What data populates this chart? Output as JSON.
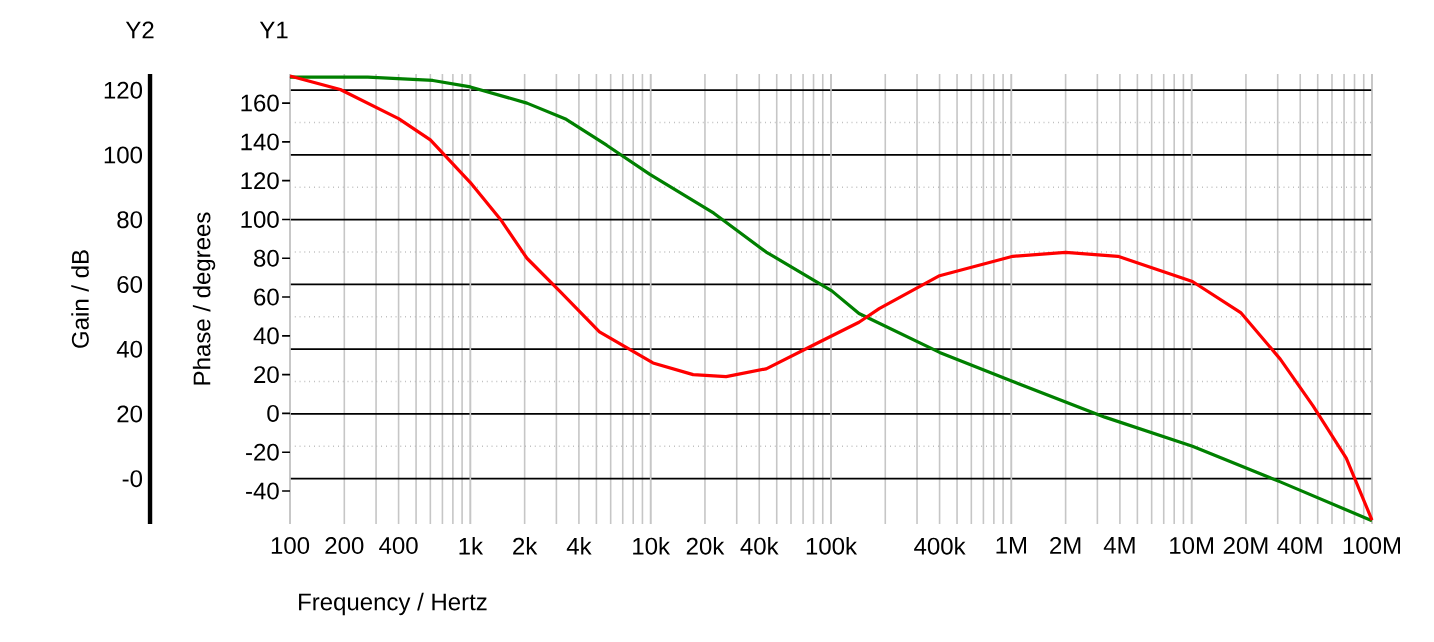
{
  "chart_data": {
    "type": "line",
    "xlabel": "Frequency / Hertz",
    "ylabel": "Phase / degrees",
    "y2label": "Gain / dB",
    "annotations": [
      "Y2",
      "Y1"
    ],
    "log": "x",
    "grid": true,
    "xlim": [
      100,
      100000000
    ],
    "xticks": [
      100,
      200,
      400,
      {
        "value": 1000,
        "label": "1k"
      },
      {
        "value": 2000,
        "label": "2k"
      },
      {
        "value": 4000,
        "label": "4k"
      },
      {
        "value": 10000,
        "label": "10k"
      },
      {
        "value": 20000,
        "label": "20k"
      },
      {
        "value": 40000,
        "label": "40k"
      },
      {
        "value": 100000,
        "label": "100k"
      },
      {
        "value": 200000,
        "label": null
      },
      {
        "value": 400000,
        "label": "400k"
      },
      {
        "value": 1000000,
        "label": "1M"
      },
      {
        "value": 2000000,
        "label": "2M"
      },
      {
        "value": 4000000,
        "label": "4M"
      },
      {
        "value": 10000000,
        "label": "10M"
      },
      {
        "value": 20000000,
        "label": "20M"
      },
      {
        "value": 40000000,
        "label": "40M"
      },
      {
        "value": 100000000,
        "label": "100M"
      }
    ],
    "ylim": [
      -57,
      175
    ],
    "yticks": [
      -40,
      -20,
      0,
      20,
      40,
      60,
      80,
      100,
      120,
      140,
      160
    ],
    "y2lim": [
      -14,
      125
    ],
    "y2ticks": [
      {
        "value": 0,
        "label": "-0"
      },
      20,
      40,
      60,
      80,
      100,
      120
    ],
    "series": [
      {
        "color": "#ff0000",
        "x": [
          100,
          190,
          400,
          600,
          1000,
          1470,
          2060,
          3130,
          5200,
          10300,
          17200,
          26200,
          43700,
          79000,
          143000,
          185000,
          400000,
          1020000,
          2000000,
          3900000,
          10100000,
          18700000,
          31000000,
          47000000,
          72000000,
          100000000
        ],
        "values": [
          174,
          167,
          152,
          141,
          119,
          100,
          80,
          63,
          42,
          26,
          20,
          19,
          23,
          35,
          47,
          54,
          71,
          81,
          83,
          81,
          68,
          52,
          28,
          4,
          -23,
          -55
        ]
      },
      {
        "color": "#008000",
        "axis": "y2",
        "x": [
          100,
          270,
          620,
          1000,
          2060,
          3400,
          5700,
          9900,
          22400,
          43700,
          101000,
          143000,
          400000,
          1020000,
          3300000,
          10100000,
          31000000,
          100000000
        ],
        "values": [
          124,
          124,
          123,
          121,
          116,
          111,
          103,
          94,
          82,
          70,
          58,
          51,
          39,
          30,
          19,
          10,
          -1,
          -13
        ]
      }
    ]
  }
}
